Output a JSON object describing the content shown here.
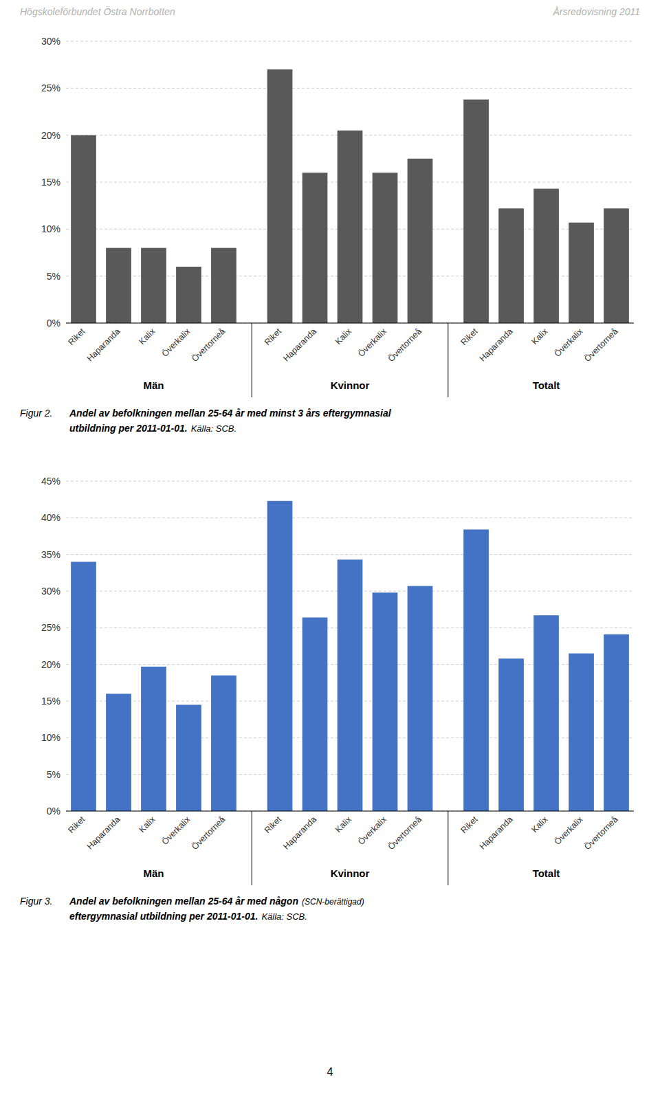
{
  "annotations": [
    "Högskoleförbundet Östra Norrbotten",
    "Årsredovisning 2011",
    "4"
  ],
  "chart_data": [
    {
      "type": "bar",
      "categories": [
        "Riket",
        "Haparanda",
        "Kalix",
        "Överkalix",
        "Övertorneå",
        "Riket",
        "Haparanda",
        "Kalix",
        "Överkalix",
        "Övertorneå",
        "Riket",
        "Haparanda",
        "Kalix",
        "Överkalix",
        "Övertorneå"
      ],
      "values": [
        0.2,
        0.08,
        0.08,
        0.06,
        0.08,
        0.27,
        0.16,
        0.205,
        0.16,
        0.175,
        0.238,
        0.122,
        0.143,
        0.107,
        0.122
      ],
      "groups": [
        "Män",
        "Kvinnor",
        "Totalt"
      ],
      "color": "#595959",
      "ylim": [
        0,
        0.3
      ],
      "yticks": [
        {
          "value": 0.0,
          "label": "0%"
        },
        {
          "value": 0.05,
          "label": "5%"
        },
        {
          "value": 0.1,
          "label": "10%"
        },
        {
          "value": 0.15,
          "label": "15%"
        },
        {
          "value": 0.2,
          "label": "20%"
        },
        {
          "value": 0.25,
          "label": "25%"
        },
        {
          "value": 0.3,
          "label": "30%"
        }
      ],
      "grid": true,
      "annotations": [
        "Figur 2.",
        "Andel av befolkningen mellan 25-64 år med minst 3 års eftergymnasial",
        "utbildning per 2011-01-01.",
        "Källa: SCB."
      ]
    },
    {
      "type": "bar",
      "categories": [
        "Riket",
        "Haparanda",
        "Kalix",
        "Överkalix",
        "Övertorneå",
        "Riket",
        "Haparanda",
        "Kalix",
        "Överkalix",
        "Övertorneå",
        "Riket",
        "Haparanda",
        "Kalix",
        "Överkalix",
        "Övertorneå"
      ],
      "values": [
        0.34,
        0.16,
        0.197,
        0.145,
        0.185,
        0.423,
        0.264,
        0.343,
        0.298,
        0.307,
        0.384,
        0.208,
        0.267,
        0.215,
        0.241
      ],
      "groups": [
        "Män",
        "Kvinnor",
        "Totalt"
      ],
      "color": "#4472C4",
      "ylim": [
        0,
        0.45
      ],
      "yticks": [
        {
          "value": 0.0,
          "label": "0%"
        },
        {
          "value": 0.05,
          "label": "5%"
        },
        {
          "value": 0.1,
          "label": "10%"
        },
        {
          "value": 0.15,
          "label": "15%"
        },
        {
          "value": 0.2,
          "label": "20%"
        },
        {
          "value": 0.25,
          "label": "25%"
        },
        {
          "value": 0.3,
          "label": "30%"
        },
        {
          "value": 0.35,
          "label": "35%"
        },
        {
          "value": 0.4,
          "label": "40%"
        },
        {
          "value": 0.45,
          "label": "45%"
        }
      ],
      "grid": true,
      "annotations": [
        "Figur 3.",
        "Andel av befolkningen mellan 25-64 år med någon",
        "(SCN-berättigad)",
        "eftergymnasial utbildning per 2011-01-01.",
        "Källa: SCB."
      ]
    }
  ]
}
